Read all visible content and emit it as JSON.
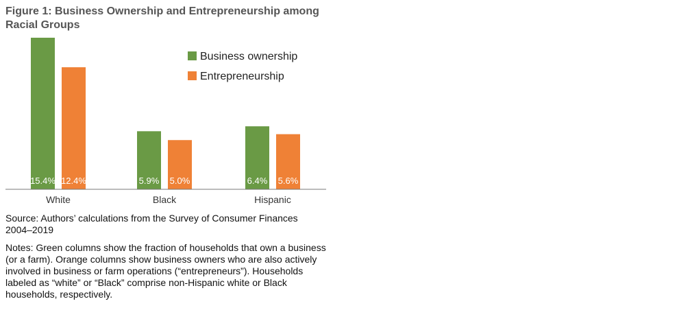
{
  "chart_data": {
    "type": "bar",
    "title": "Figure 1: Business Ownership and Entrepreneurship among Racial Groups",
    "categories": [
      "White",
      "Black",
      "Hispanic"
    ],
    "series": [
      {
        "name": "Business ownership",
        "values": [
          15.4,
          5.9,
          6.4
        ],
        "labels": [
          "15.4%",
          "5.9%",
          "6.4%"
        ],
        "color": "#6a9a45"
      },
      {
        "name": "Entrepreneurship",
        "values": [
          12.4,
          5.0,
          5.6
        ],
        "labels": [
          "12.4%",
          "5.0%",
          "5.6%"
        ],
        "color": "#ef8136"
      }
    ],
    "ylim": [
      0,
      15.4
    ],
    "legend_position": "top-right",
    "grid": false
  },
  "source": "Source: Authors’ calculations from the Survey of Consumer Finances 2004–2019",
  "notes": "Notes: Green columns show the fraction of households that own a business (or a farm). Orange columns show business owners who are also actively involved in business or farm operations (“entrepreneurs”). Households labeled as “white” or “Black” comprise non-Hispanic white or Black households, respectively."
}
